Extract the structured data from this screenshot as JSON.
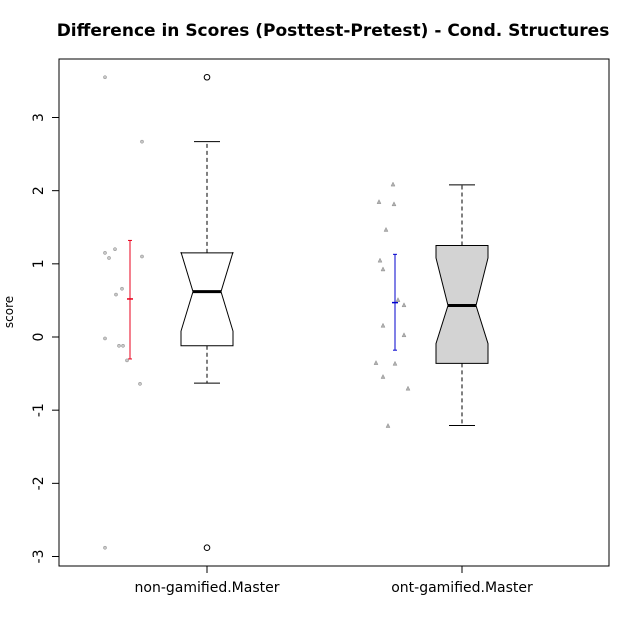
{
  "chart_data": {
    "type": "boxplot",
    "title": "Difference in Scores (Posttest-Pretest) - Cond. Structures",
    "xlabel": "",
    "ylabel": "score",
    "ylim": [
      -3.15,
      3.8
    ],
    "yticks": [
      "-3",
      "-2",
      "-1",
      "0",
      "1",
      "2",
      "3"
    ],
    "grid": false,
    "categories": [
      "non-gamified.Master",
      "ont-gamified.Master"
    ],
    "boxes": [
      {
        "category": "non-gamified.Master",
        "fill": "#ffffff",
        "whisker_low": -0.63,
        "q1": -0.12,
        "median": 0.62,
        "q3": 1.15,
        "whisker_high": 2.67,
        "notch_low": 0.08,
        "notch_high": 1.16,
        "outliers": [
          3.55,
          -2.88
        ],
        "mean": 0.52,
        "mean_interval": [
          -0.3,
          1.32
        ],
        "mean_color": "#e8001c",
        "point_marker": "circle",
        "points": [
          3.55,
          2.67,
          1.2,
          1.15,
          1.1,
          1.08,
          0.66,
          0.58,
          -0.02,
          -0.12,
          -0.12,
          -0.32,
          -0.64,
          -2.88
        ]
      },
      {
        "category": "ont-gamified.Master",
        "fill": "#d3d3d3",
        "whisker_low": -1.21,
        "q1": -0.36,
        "median": 0.43,
        "q3": 1.25,
        "whisker_high": 2.08,
        "notch_low": -0.09,
        "notch_high": 1.08,
        "outliers": [],
        "mean": 0.47,
        "mean_interval": [
          -0.18,
          1.13
        ],
        "mean_color": "#0000cd",
        "point_marker": "triangle",
        "points": [
          2.09,
          1.85,
          1.82,
          1.47,
          1.05,
          0.93,
          0.51,
          0.44,
          0.16,
          0.03,
          -0.35,
          -0.36,
          -0.54,
          -0.7,
          -1.21
        ]
      }
    ]
  }
}
